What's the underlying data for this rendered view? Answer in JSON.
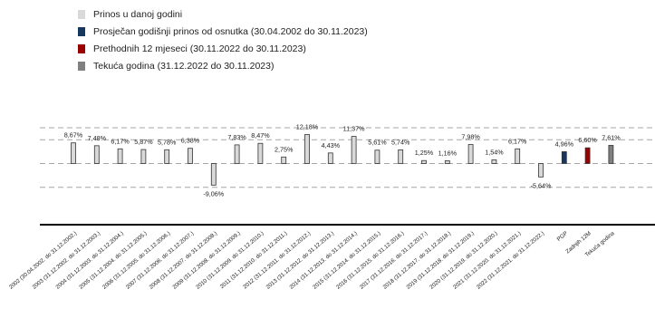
{
  "chart_data": {
    "type": "bar",
    "categories": [
      "2002 (30.04.2002. do 31.12.2002.)",
      "2003 (31.12.2002. do 31.12.2003.)",
      "2004 (31.12.2003. do 31.12.2004.)",
      "2005 (31.12.2004. do 31.12.2005.)",
      "2006 (31.12.2005. do 31.12.2006.)",
      "2007 (31.12.2006. do 31.12.2007.)",
      "2008 (31.12.2007. do 31.12.2008.)",
      "2009 (31.12.2008. do 31.12.2009.)",
      "2010 (31.12.2009. do 31.12.2010.)",
      "2011 (31.12.2010. do 31.12.2011.)",
      "2012 (31.12.2011. do 31.12.2012.)",
      "2013 (31.12.2012. do 31.12.2013.)",
      "2014 (31.12.2013. do 31.12.2014.)",
      "2015 (31.12.2014. do 31.12.2015.)",
      "2016 (31.12.2015. do 31.12.2016.)",
      "2017 (31.12.2016. do 31.12.2017.)",
      "2018 (31.12.2017. do 31.12.2018.)",
      "2019 (31.12.2018. do 31.12.2019.)",
      "2020 (31.12.2019. do 31.12.2020.)",
      "2021 (31.12.2020. do 31.12.2021.)",
      "2022 (31.12.2021. do 31.12.2022.)",
      "PGP",
      "Zadnjih 12M",
      "Tekuća godina"
    ],
    "values": [
      8.67,
      7.48,
      6.17,
      5.87,
      5.78,
      6.38,
      -9.06,
      7.83,
      8.47,
      2.75,
      12.18,
      4.43,
      11.37,
      5.61,
      5.74,
      1.25,
      1.16,
      7.98,
      1.54,
      6.17,
      -5.64,
      4.96,
      6.6,
      7.61
    ],
    "value_labels": [
      "8,67%",
      "7,48%",
      "6,17%",
      "5,87%",
      "5,78%",
      "6,38%",
      "-9,06%",
      "7,83%",
      "8,47%",
      "2,75%",
      "12,18%",
      "4,43%",
      "11,37%",
      "5,61%",
      "5,74%",
      "1,25%",
      "1,16%",
      "7,98%",
      "1,54%",
      "6,17%",
      "-5,64%",
      "4,96%",
      "6,60%",
      "7,61%"
    ],
    "bar_series": [
      0,
      0,
      0,
      0,
      0,
      0,
      0,
      0,
      0,
      0,
      0,
      0,
      0,
      0,
      0,
      0,
      0,
      0,
      0,
      0,
      0,
      1,
      2,
      3
    ],
    "series": [
      {
        "name": "Prinos u danoj godini",
        "color": "#d9d9d9"
      },
      {
        "name": "Prosječan godišnji prinos od osnutka (30.04.2002 do 30.11.2023)",
        "color": "#17375e"
      },
      {
        "name": "Prethodnih 12 mjeseci (30.11.2022 do 30.11.2023)",
        "color": "#990000"
      },
      {
        "name": "Tekuća godina (31.12.2022 do 30.11.2023)",
        "color": "#808080"
      }
    ],
    "ylim": [
      -15,
      20
    ],
    "gridlines": [
      -10,
      0,
      10,
      15
    ],
    "grid": true,
    "legend_position": "top-left",
    "xlabel": "",
    "ylabel": ""
  }
}
